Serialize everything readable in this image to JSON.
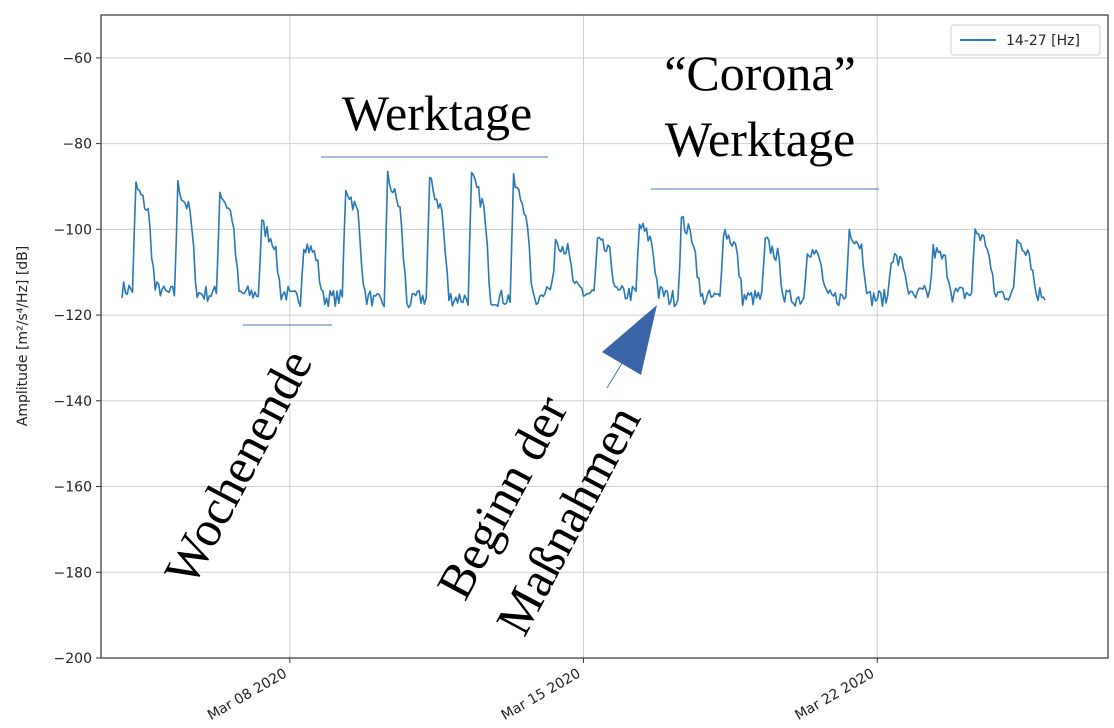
{
  "chart_data": {
    "type": "line",
    "ylabel": "Amplitude [m²/s⁴/Hz] [dB]",
    "ylim": [
      -200,
      -50
    ],
    "yticks": [
      -60,
      -80,
      -100,
      -120,
      -140,
      -160,
      -180,
      -200
    ],
    "ytick_labels": [
      "−60",
      "−80",
      "−100",
      "−120",
      "−140",
      "−160",
      "−180",
      "−200"
    ],
    "xlim": [
      "2020-03-03T12:00",
      "2020-03-27T12:00"
    ],
    "xticks": [
      "2020-03-08",
      "2020-03-15",
      "2020-03-22"
    ],
    "xtick_labels": [
      "Mar 08 2020",
      "Mar 15 2020",
      "Mar 22 2020"
    ],
    "grid": true,
    "legend_position": "top-right",
    "series": [
      {
        "name": "14-27 [Hz]",
        "color": "#2878b5",
        "start": "2020-03-04",
        "end": "2020-03-26",
        "day_profile": [
          {
            "day": "2020-03-04",
            "peak": -90,
            "base": -114
          },
          {
            "day": "2020-03-05",
            "peak": -90,
            "base": -115
          },
          {
            "day": "2020-03-06",
            "peak": -91,
            "base": -115
          },
          {
            "day": "2020-03-07",
            "peak": -99,
            "base": -115
          },
          {
            "day": "2020-03-08",
            "peak": -103,
            "base": -116
          },
          {
            "day": "2020-03-09",
            "peak": -90,
            "base": -116
          },
          {
            "day": "2020-03-10",
            "peak": -88,
            "base": -117
          },
          {
            "day": "2020-03-11",
            "peak": -89,
            "base": -116
          },
          {
            "day": "2020-03-12",
            "peak": -88,
            "base": -116
          },
          {
            "day": "2020-03-13",
            "peak": -89,
            "base": -116
          },
          {
            "day": "2020-03-14",
            "peak": -102,
            "base": -114
          },
          {
            "day": "2020-03-15",
            "peak": -103,
            "base": -115
          },
          {
            "day": "2020-03-16",
            "peak": -99,
            "base": -115
          },
          {
            "day": "2020-03-17",
            "peak": -98,
            "base": -116
          },
          {
            "day": "2020-03-18",
            "peak": -100,
            "base": -116
          },
          {
            "day": "2020-03-19",
            "peak": -103,
            "base": -116
          },
          {
            "day": "2020-03-20",
            "peak": -104,
            "base": -116
          },
          {
            "day": "2020-03-21",
            "peak": -100,
            "base": -116
          },
          {
            "day": "2020-03-22",
            "peak": -106,
            "base": -116
          },
          {
            "day": "2020-03-23",
            "peak": -105,
            "base": -115
          },
          {
            "day": "2020-03-24",
            "peak": -100,
            "base": -115
          },
          {
            "day": "2020-03-25",
            "peak": -102,
            "base": -115
          }
        ]
      }
    ],
    "annotations": [
      {
        "text": "Werktage"
      },
      {
        "text": "“Corona”"
      },
      {
        "text": "Werktage"
      },
      {
        "text": "Wochenende"
      },
      {
        "text": "Beginn der"
      },
      {
        "text": "Maßnahmen"
      }
    ]
  }
}
